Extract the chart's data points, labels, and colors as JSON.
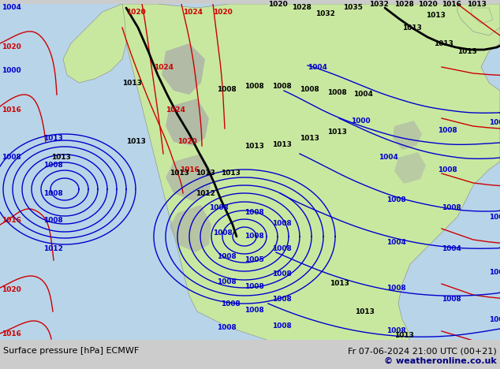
{
  "title_left": "Surface pressure [hPa] ECMWF",
  "title_right": "Fr 07-06-2024 21:00 UTC (00+21)",
  "copyright": "© weatheronline.co.uk",
  "ocean_color": "#b8d4e8",
  "land_color": "#c8e8a0",
  "gray_color": "#a8a8a8",
  "bottom_bar_color": "#cccccc",
  "text_color": "#000000",
  "blue_color": "#0000cc",
  "red_color": "#cc0000",
  "font_size_label": 8,
  "font_size_copyright": 8
}
